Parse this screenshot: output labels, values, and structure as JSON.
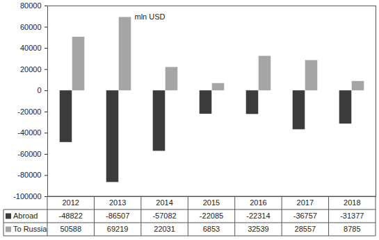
{
  "chart_data": {
    "type": "bar",
    "title": "mln USD",
    "categories": [
      "2012",
      "2013",
      "2014",
      "2015",
      "2016",
      "2017",
      "2018"
    ],
    "series": [
      {
        "name": "Abroad",
        "color": "#3b3b3b",
        "values": [
          -48822,
          -86507,
          -57082,
          -22085,
          -22314,
          -36757,
          -31377
        ]
      },
      {
        "name": "To Russia",
        "color": "#a5a5a5",
        "values": [
          50588,
          69219,
          22031,
          6853,
          32539,
          28557,
          8785
        ]
      }
    ],
    "ylim": [
      -100000,
      80000
    ],
    "yticks": [
      -100000,
      -80000,
      -60000,
      -40000,
      -20000,
      0,
      20000,
      40000,
      60000,
      80000
    ],
    "grid": false,
    "legend": "bottom"
  }
}
